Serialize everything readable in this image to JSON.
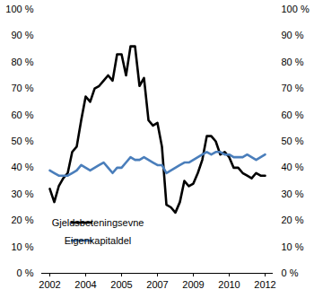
{
  "chart_data": {
    "type": "line",
    "categories": [
      "2002",
      null,
      null,
      null,
      null,
      null,
      null,
      null,
      "2004",
      null,
      null,
      null,
      null,
      null,
      null,
      null,
      "2005",
      null,
      null,
      null,
      null,
      null,
      null,
      null,
      "2007",
      null,
      null,
      null,
      null,
      null,
      null,
      null,
      "2009",
      null,
      null,
      null,
      null,
      null,
      null,
      null,
      "2010",
      null,
      null,
      null,
      null,
      null,
      null,
      null,
      "2012"
    ],
    "series": [
      {
        "name": "Gjeldsbeteningsevne",
        "color": "#000000",
        "values": [
          32,
          27,
          33,
          36,
          38,
          46,
          48,
          58,
          67,
          65,
          70,
          71,
          73,
          75,
          73,
          83,
          83,
          75,
          86,
          86,
          71,
          74,
          58,
          56,
          57,
          48,
          26,
          25,
          23,
          27,
          35,
          33,
          34,
          38,
          43,
          52,
          52,
          50,
          45,
          46,
          44,
          40,
          40,
          38,
          37,
          36,
          38,
          37,
          37
        ]
      },
      {
        "name": "Eigenkapitaldel",
        "color": "#4a7ebb",
        "values": [
          39,
          38,
          37,
          37,
          37,
          38,
          39,
          41,
          40,
          39,
          40,
          41,
          42,
          40,
          38,
          40,
          40,
          42,
          44,
          43,
          43,
          44,
          43,
          42,
          41,
          41,
          38,
          39,
          40,
          41,
          42,
          42,
          43,
          44,
          45,
          46,
          45,
          46,
          46,
          45,
          45,
          44,
          44,
          44,
          45,
          44,
          43,
          44,
          45
        ]
      }
    ],
    "ylim": [
      0,
      100
    ],
    "yticks": [
      {
        "value": 0,
        "label": "0 %"
      },
      {
        "value": 10,
        "label": "10 %"
      },
      {
        "value": 20,
        "label": "20 %"
      },
      {
        "value": 30,
        "label": "30 %"
      },
      {
        "value": 40,
        "label": "40 %"
      },
      {
        "value": 50,
        "label": "50 %"
      },
      {
        "value": 60,
        "label": "60 %"
      },
      {
        "value": 70,
        "label": "70 %"
      },
      {
        "value": 80,
        "label": "80 %"
      },
      {
        "value": 90,
        "label": "90 %"
      },
      {
        "value": 100,
        "label": "100 %"
      }
    ],
    "y2lim": [
      0,
      100
    ],
    "y2ticks": [
      {
        "value": 0,
        "label": "0 %"
      },
      {
        "value": 10,
        "label": "10 %"
      },
      {
        "value": 20,
        "label": "20 %"
      },
      {
        "value": 30,
        "label": "30 %"
      },
      {
        "value": 40,
        "label": "40 %"
      },
      {
        "value": 50,
        "label": "50 %"
      },
      {
        "value": 60,
        "label": "60 %"
      },
      {
        "value": 70,
        "label": "70 %"
      },
      {
        "value": 80,
        "label": "80 %"
      },
      {
        "value": 90,
        "label": "90 %"
      },
      {
        "value": 100,
        "label": "100 %"
      }
    ],
    "legend": "lower left",
    "grid": false
  }
}
